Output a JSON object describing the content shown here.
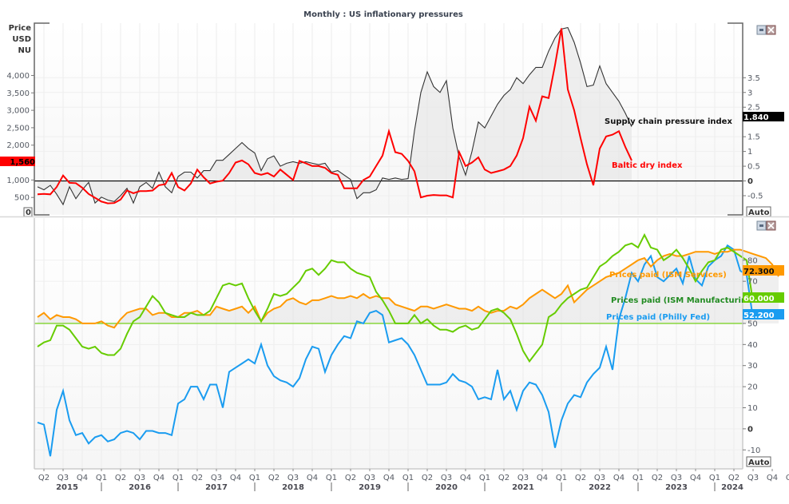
{
  "window": {
    "title": "Monthly : US inflationary pressures"
  },
  "controls": {
    "auto_label": "Auto",
    "zero_box": "0"
  },
  "colors": {
    "baltic": "#ff0000",
    "supply": "#333333",
    "ism_services": "#ff9900",
    "ism_manufacturing": "#66cc00",
    "philly_fed": "#1a9cf0",
    "ism_label_green": "#228b22"
  },
  "chart_data": [
    {
      "type": "line",
      "title": "Monthly : US inflationary pressures",
      "x_start": "2015-03",
      "frequency": "monthly",
      "left_axis": {
        "label_lines": [
          "Price",
          "USD",
          "NU"
        ],
        "ticks": [
          "500",
          "1,000",
          "2,000",
          "2,500",
          "3,000",
          "3,500",
          "4,000"
        ],
        "tick_values": [
          500,
          1000,
          2000,
          2500,
          3000,
          3500,
          4000
        ],
        "range": [
          0,
          5500
        ]
      },
      "right_axis": {
        "ticks": [
          "-0.5",
          "0",
          "0.5",
          "1",
          "1.5",
          "2.5",
          "3",
          "3.5"
        ],
        "tick_values": [
          -0.5,
          0,
          0.5,
          1,
          1.5,
          2.5,
          3,
          3.5
        ],
        "range": [
          -1.15,
          5.35
        ]
      },
      "reference_line": 0,
      "series": [
        {
          "name": "Baltic dry index",
          "axis": "left",
          "last_value_label": "1,560",
          "values": [
            590,
            600,
            590,
            800,
            1130,
            920,
            910,
            780,
            600,
            490,
            380,
            330,
            340,
            440,
            700,
            620,
            680,
            680,
            700,
            850,
            880,
            1200,
            800,
            700,
            900,
            1300,
            1080,
            900,
            950,
            980,
            1200,
            1500,
            1560,
            1450,
            1200,
            1150,
            1200,
            1100,
            1300,
            1150,
            1000,
            1550,
            1480,
            1400,
            1400,
            1350,
            1200,
            1150,
            760,
            760,
            760,
            1000,
            1100,
            1400,
            1700,
            2400,
            1800,
            1750,
            1550,
            1250,
            500,
            550,
            570,
            560,
            560,
            500,
            1800,
            1400,
            1500,
            1650,
            1300,
            1200,
            1250,
            1300,
            1400,
            1700,
            2200,
            3100,
            2700,
            3400,
            3350,
            4300,
            5350,
            3600,
            3000,
            2200,
            1450,
            850,
            1900,
            2250,
            2300,
            2400,
            1950,
            1560
          ]
        },
        {
          "name": "Supply chain pressure index",
          "axis": "right",
          "last_value_label": "1.840",
          "values": [
            -0.2,
            -0.3,
            -0.15,
            -0.45,
            -0.8,
            -0.2,
            -0.6,
            -0.3,
            -0.05,
            -0.75,
            -0.55,
            -0.65,
            -0.7,
            -0.5,
            -0.25,
            -0.75,
            -0.2,
            -0.05,
            -0.25,
            0.3,
            -0.2,
            -0.4,
            0.15,
            0.3,
            0.3,
            0.1,
            0.35,
            0.35,
            0.7,
            0.7,
            0.9,
            1.1,
            1.3,
            1.1,
            0.95,
            0.35,
            0.75,
            0.85,
            0.5,
            0.6,
            0.65,
            0.6,
            0.65,
            0.6,
            0.55,
            0.6,
            0.3,
            0.35,
            0.2,
            0.05,
            -0.6,
            -0.4,
            -0.4,
            -0.3,
            0.1,
            0.05,
            0.1,
            0.05,
            0.08,
            1.7,
            3.0,
            3.7,
            3.2,
            3.0,
            3.4,
            1.8,
            0.8,
            0.2,
            1.0,
            2.0,
            1.8,
            2.2,
            2.6,
            2.9,
            3.1,
            3.5,
            3.3,
            3.6,
            3.85,
            3.85,
            4.4,
            4.85,
            5.15,
            5.2,
            4.7,
            4.0,
            3.2,
            3.25,
            3.9,
            3.3,
            3.0,
            2.7,
            2.3,
            1.84
          ]
        }
      ]
    },
    {
      "type": "line",
      "x_start": "2015-03",
      "frequency": "monthly",
      "right_axis": {
        "ticks": [
          "-10",
          "0",
          "10",
          "20",
          "30",
          "40",
          "50",
          "70",
          "80"
        ],
        "tick_values": [
          -10,
          0,
          10,
          20,
          30,
          40,
          50,
          70,
          80
        ],
        "range": [
          -19,
          100
        ]
      },
      "reference_line": 50,
      "x_axis": {
        "quarters": [
          "Q2",
          "Q3",
          "Q4",
          "Q1",
          "Q2",
          "Q3",
          "Q4",
          "Q1",
          "Q2",
          "Q3",
          "Q4",
          "Q1",
          "Q2",
          "Q3",
          "Q4",
          "Q1",
          "Q2",
          "Q3",
          "Q4",
          "Q1",
          "Q2",
          "Q3",
          "Q4",
          "Q1",
          "Q2",
          "Q3",
          "Q4",
          "Q1",
          "Q2",
          "Q3",
          "Q4",
          "Q1",
          "Q2",
          "Q3",
          "Q4",
          "Q1",
          "Q2",
          "Q3",
          "Q4",
          "Q1",
          "Q2"
        ],
        "years": [
          "2015",
          "2016",
          "2017",
          "2018",
          "2019",
          "2020",
          "2021",
          "2022",
          "2023",
          "2024"
        ]
      },
      "series": [
        {
          "name": "Prices paid (ISM Services)",
          "last_value_label": "72.300",
          "values": [
            53,
            55,
            52,
            54,
            53,
            53,
            52,
            50,
            50,
            50,
            51,
            49,
            48,
            52,
            55,
            56,
            57,
            57,
            54,
            55,
            55,
            53,
            53,
            55,
            55,
            56,
            54,
            54,
            58,
            57,
            56,
            57,
            58,
            55,
            58,
            51,
            55,
            57,
            58,
            61,
            62,
            60,
            59,
            61,
            61,
            62,
            63,
            62,
            62,
            63,
            62,
            64,
            62,
            63,
            62,
            62,
            59,
            58,
            57,
            56,
            58,
            58,
            57,
            58,
            59,
            58,
            57,
            57,
            56,
            58,
            56,
            55,
            56,
            56,
            58,
            57,
            59,
            62,
            64,
            66,
            64,
            62,
            64,
            68,
            60,
            63,
            66,
            68,
            70,
            72,
            73,
            74,
            76,
            78,
            80,
            81,
            77,
            80,
            82,
            83,
            82,
            82,
            83,
            84,
            84,
            84,
            83,
            84,
            84,
            85,
            85,
            84,
            83,
            82,
            81,
            78,
            72.3
          ]
        },
        {
          "name": "Prices paid (ISM Manufacturing)",
          "last_value_label": "60.000",
          "values": [
            39,
            41,
            42,
            49,
            49,
            47,
            43,
            39,
            38,
            39,
            36,
            35,
            35,
            38,
            45,
            51,
            53,
            58,
            63,
            60,
            55,
            54,
            53,
            53,
            55,
            54,
            54,
            56,
            62,
            68,
            69,
            68,
            69,
            62,
            56,
            51,
            57,
            64,
            63,
            64,
            67,
            70,
            75,
            76,
            73,
            76,
            80,
            79,
            79,
            76,
            74,
            73,
            72,
            65,
            61,
            56,
            50,
            50,
            50,
            54,
            50,
            52,
            49,
            47,
            47,
            46,
            48,
            49,
            47,
            48,
            52,
            56,
            57,
            55,
            52,
            45,
            37,
            32,
            36,
            40,
            53,
            55,
            59,
            62,
            64,
            66,
            67,
            72,
            77,
            79,
            82,
            84,
            87,
            88,
            86,
            92,
            86,
            85,
            80,
            82,
            85,
            81,
            76,
            70,
            75,
            79,
            80,
            85,
            86,
            84,
            82,
            80,
            60
          ]
        },
        {
          "name": "Prices paid (Philly Fed)",
          "last_value_label": "52.200",
          "values": [
            3,
            2,
            -13,
            9,
            18,
            4,
            -3,
            -2,
            -7,
            -4,
            -3,
            -6,
            -5,
            -2,
            -1,
            -2,
            -5,
            -1,
            -1,
            -2,
            -2,
            -3,
            12,
            14,
            20,
            20,
            14,
            21,
            21,
            10,
            27,
            29,
            31,
            33,
            31,
            40,
            30,
            25,
            23,
            22,
            20,
            24,
            33,
            39,
            38,
            27,
            35,
            40,
            44,
            43,
            51,
            50,
            55,
            56,
            54,
            41,
            42,
            43,
            40,
            35,
            28,
            21,
            21,
            21,
            22,
            26,
            23,
            22,
            20,
            14,
            15,
            14,
            28,
            14,
            18,
            9,
            18,
            22,
            21,
            16,
            8,
            -9,
            4,
            12,
            16,
            15,
            22,
            26,
            29,
            39,
            28,
            52,
            62,
            74,
            70,
            78,
            82,
            72,
            70,
            73,
            76,
            69,
            82,
            71,
            68,
            77,
            80,
            82,
            87,
            85,
            75,
            73,
            52.2
          ]
        }
      ]
    }
  ]
}
